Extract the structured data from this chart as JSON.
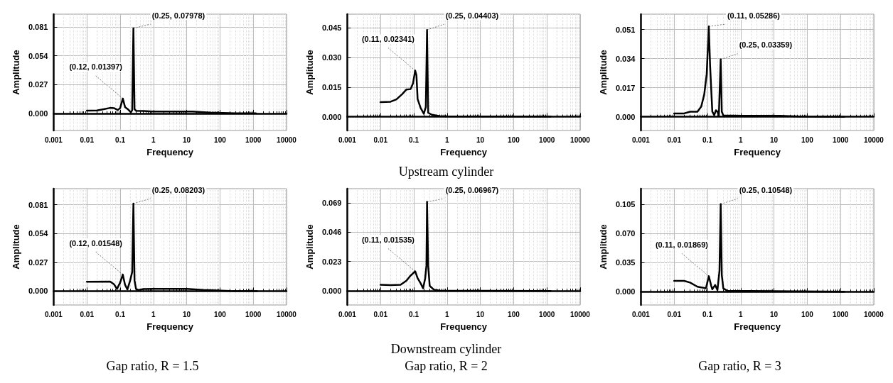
{
  "chart_data": [
    {
      "type": "line",
      "xlabel": "Frequency",
      "ylabel": "Amplitude",
      "log": "x",
      "grid": true,
      "marker": "none",
      "line_style": "solid",
      "xlim": [
        0.001,
        10000
      ],
      "xticks": [
        0.001,
        0.01,
        0.1,
        1,
        10,
        100,
        1000,
        10000
      ],
      "ylim": [
        -0.016,
        0.093
      ],
      "yticks": [
        {
          "value": 0,
          "label": "0.000"
        },
        {
          "value": 0.027,
          "label": "0.027"
        },
        {
          "value": 0.054,
          "label": "0.054"
        },
        {
          "value": 0.081,
          "label": "0.081"
        }
      ],
      "series": [
        {
          "color": "#000000",
          "x": [
            0.01,
            0.02,
            0.03,
            0.05,
            0.065,
            0.085,
            0.1,
            0.12,
            0.14,
            0.17,
            0.21,
            0.23,
            0.25,
            0.27,
            0.3,
            0.5,
            1,
            15,
            50,
            300,
            1200
          ],
          "values": [
            0.0026,
            0.0028,
            0.0038,
            0.0052,
            0.005,
            0.0032,
            0.005,
            0.01397,
            0.006,
            0.004,
            0.001,
            0.003,
            0.07978,
            0.004,
            0.0025,
            0.0022,
            0.0018,
            0.0018,
            0.0008,
            0.0002,
            0.0002
          ]
        }
      ],
      "annotations": [
        {
          "text": "(0.12, 0.01397)",
          "x": 0.12,
          "y": 0.01397
        },
        {
          "text": "(0.25, 0.07978)",
          "x": 0.25,
          "y": 0.07978
        }
      ]
    },
    {
      "type": "line",
      "xlabel": "Frequency",
      "ylabel": "Amplitude",
      "log": "x",
      "grid": true,
      "marker": "none",
      "line_style": "solid",
      "xlim": [
        0.001,
        10000
      ],
      "xticks": [
        0.001,
        0.01,
        0.1,
        1,
        10,
        100,
        1000,
        10000
      ],
      "ylim": [
        -0.007,
        0.052
      ],
      "yticks": [
        {
          "value": 0,
          "label": "0.000"
        },
        {
          "value": 0.015,
          "label": "0.015"
        },
        {
          "value": 0.03,
          "label": "0.030"
        },
        {
          "value": 0.045,
          "label": "0.045"
        }
      ],
      "series": [
        {
          "color": "#000000",
          "x": [
            0.01,
            0.02,
            0.03,
            0.045,
            0.06,
            0.08,
            0.095,
            0.11,
            0.12,
            0.13,
            0.16,
            0.2,
            0.23,
            0.25,
            0.27,
            0.35,
            0.6,
            1,
            1300
          ],
          "values": [
            0.0074,
            0.0076,
            0.0088,
            0.0115,
            0.0138,
            0.014,
            0.017,
            0.02341,
            0.021,
            0.009,
            0.0045,
            0.0015,
            0.005,
            0.04403,
            0.002,
            0.001,
            0.0003,
            0.0002,
            0.0001
          ]
        }
      ],
      "annotations": [
        {
          "text": "(0.11, 0.02341)",
          "x": 0.11,
          "y": 0.02341
        },
        {
          "text": "(0.25, 0.04403)",
          "x": 0.25,
          "y": 0.04403
        },
        "Upstream cylinder"
      ]
    },
    {
      "type": "line",
      "xlabel": "Frequency",
      "ylabel": "Amplitude",
      "log": "x",
      "grid": true,
      "marker": "none",
      "line_style": "solid",
      "xlim": [
        0.001,
        10000
      ],
      "xticks": [
        0.001,
        0.01,
        0.1,
        1,
        10,
        100,
        1000,
        10000
      ],
      "ylim": [
        -0.008,
        0.06
      ],
      "yticks": [
        {
          "value": 0,
          "label": "0.000"
        },
        {
          "value": 0.017,
          "label": "0.017"
        },
        {
          "value": 0.034,
          "label": "0.034"
        },
        {
          "value": 0.051,
          "label": "0.051"
        }
      ],
      "series": [
        {
          "color": "#000000",
          "x": [
            0.01,
            0.02,
            0.03,
            0.05,
            0.065,
            0.08,
            0.095,
            0.11,
            0.12,
            0.14,
            0.16,
            0.18,
            0.2,
            0.22,
            0.25,
            0.27,
            0.3,
            1,
            15,
            60,
            1300
          ],
          "values": [
            0.0019,
            0.002,
            0.003,
            0.003,
            0.006,
            0.013,
            0.025,
            0.05286,
            0.03,
            0.003,
            0.001,
            0.0038,
            0.003,
            0.0005,
            0.03359,
            0.003,
            0.0008,
            0.0006,
            0.0006,
            0.0002,
            0
          ]
        }
      ],
      "annotations": [
        {
          "text": "(0.11, 0.05286)",
          "x": 0.11,
          "y": 0.05286
        },
        {
          "text": "(0.25, 0.03359)",
          "x": 0.25,
          "y": 0.03359
        }
      ]
    },
    {
      "type": "line",
      "xlabel": "Frequency",
      "ylabel": "Amplitude",
      "log": "x",
      "grid": true,
      "marker": "none",
      "line_style": "solid",
      "xlim": [
        0.001,
        10000
      ],
      "xticks": [
        0.001,
        0.01,
        0.1,
        1,
        10,
        100,
        1000,
        10000
      ],
      "ylim": [
        -0.013,
        0.096
      ],
      "yticks": [
        {
          "value": 0,
          "label": "0.000"
        },
        {
          "value": 0.027,
          "label": "0.027"
        },
        {
          "value": 0.054,
          "label": "0.054"
        },
        {
          "value": 0.081,
          "label": "0.081"
        }
      ],
      "series": [
        {
          "color": "#000000",
          "x": [
            0.01,
            0.05,
            0.065,
            0.08,
            0.1,
            0.12,
            0.14,
            0.165,
            0.2,
            0.23,
            0.25,
            0.27,
            0.3,
            0.35,
            0.5,
            1,
            10,
            30,
            200,
            1300
          ],
          "values": [
            0.0088,
            0.009,
            0.0065,
            0.002,
            0.008,
            0.01548,
            0.006,
            0.0015,
            0.01,
            0.018,
            0.08203,
            0.01,
            0.002,
            0.001,
            0.002,
            0.0022,
            0.0022,
            0.0012,
            0.0002,
            0
          ]
        }
      ],
      "annotations": [
        {
          "text": "(0.12, 0.01548)",
          "x": 0.12,
          "y": 0.01548
        },
        {
          "text": "(0.25, 0.08203)",
          "x": 0.25,
          "y": 0.08203
        },
        "Gap ratio, R = 1.5"
      ]
    },
    {
      "type": "line",
      "xlabel": "Frequency",
      "ylabel": "Amplitude",
      "log": "x",
      "grid": true,
      "marker": "none",
      "line_style": "solid",
      "xlim": [
        0.001,
        10000
      ],
      "xticks": [
        0.001,
        0.01,
        0.1,
        1,
        10,
        100,
        1000,
        10000
      ],
      "ylim": [
        -0.011,
        0.08
      ],
      "yticks": [
        {
          "value": 0,
          "label": "0.000"
        },
        {
          "value": 0.023,
          "label": "0.023"
        },
        {
          "value": 0.046,
          "label": "0.046"
        },
        {
          "value": 0.069,
          "label": "0.069"
        }
      ],
      "series": [
        {
          "color": "#000000",
          "x": [
            0.01,
            0.02,
            0.04,
            0.06,
            0.08,
            0.11,
            0.13,
            0.16,
            0.19,
            0.22,
            0.24,
            0.25,
            0.27,
            0.3,
            0.4,
            0.6,
            1300
          ],
          "values": [
            0.0048,
            0.0046,
            0.0048,
            0.008,
            0.012,
            0.01535,
            0.01,
            0.006,
            0.002,
            0.01,
            0.02,
            0.06967,
            0.02,
            0.004,
            0.001,
            0.0003,
            0
          ]
        }
      ],
      "annotations": [
        {
          "text": "(0.11, 0.01535)",
          "x": 0.11,
          "y": 0.01535
        },
        {
          "text": "(0.25, 0.06967)",
          "x": 0.25,
          "y": 0.06967
        },
        "Downstream cylinder",
        "Gap ratio, R = 2"
      ]
    },
    {
      "type": "line",
      "xlabel": "Frequency",
      "ylabel": "Amplitude",
      "log": "x",
      "grid": true,
      "marker": "none",
      "line_style": "solid",
      "xlim": [
        0.001,
        10000
      ],
      "xticks": [
        0.001,
        0.01,
        0.1,
        1,
        10,
        100,
        1000,
        10000
      ],
      "ylim": [
        -0.016,
        0.124
      ],
      "yticks": [
        {
          "value": 0,
          "label": "0.000"
        },
        {
          "value": 0.035,
          "label": "0.035"
        },
        {
          "value": 0.07,
          "label": "0.070"
        },
        {
          "value": 0.105,
          "label": "0.105"
        }
      ],
      "series": [
        {
          "color": "#000000",
          "x": [
            0.01,
            0.02,
            0.03,
            0.05,
            0.07,
            0.09,
            0.11,
            0.13,
            0.14,
            0.17,
            0.2,
            0.23,
            0.25,
            0.27,
            0.3,
            0.4,
            1300
          ],
          "values": [
            0.013,
            0.013,
            0.011,
            0.006,
            0.005,
            0.004,
            0.01869,
            0.007,
            0.003,
            0.008,
            0.002,
            0.025,
            0.10548,
            0.02,
            0.004,
            0.001,
            0
          ]
        }
      ],
      "annotations": [
        {
          "text": "(0.11, 0.01869)",
          "x": 0.11,
          "y": 0.01869
        },
        {
          "text": "(0.25, 0.10548)",
          "x": 0.25,
          "y": 0.10548
        },
        "Gap ratio, R = 3"
      ]
    }
  ]
}
